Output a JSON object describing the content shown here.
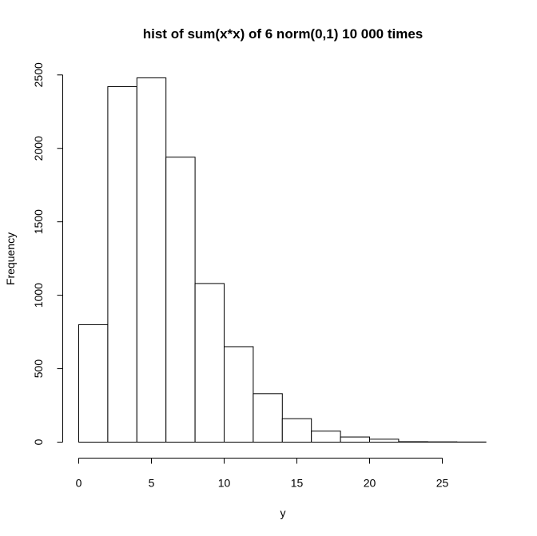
{
  "chart_data": {
    "type": "bar",
    "subtype": "histogram",
    "title": "hist of sum(x*x) of 6 norm(0,1) 10 000 times",
    "xlabel": "y",
    "ylabel": "Frequency",
    "bin_width": 2,
    "bins": [
      {
        "x0": 0,
        "x1": 2,
        "count": 800
      },
      {
        "x0": 2,
        "x1": 4,
        "count": 2420
      },
      {
        "x0": 4,
        "x1": 6,
        "count": 2480
      },
      {
        "x0": 6,
        "x1": 8,
        "count": 1940
      },
      {
        "x0": 8,
        "x1": 10,
        "count": 1080
      },
      {
        "x0": 10,
        "x1": 12,
        "count": 650
      },
      {
        "x0": 12,
        "x1": 14,
        "count": 330
      },
      {
        "x0": 14,
        "x1": 16,
        "count": 160
      },
      {
        "x0": 16,
        "x1": 18,
        "count": 75
      },
      {
        "x0": 18,
        "x1": 20,
        "count": 35
      },
      {
        "x0": 20,
        "x1": 22,
        "count": 20
      },
      {
        "x0": 22,
        "x1": 24,
        "count": 3
      },
      {
        "x0": 24,
        "x1": 26,
        "count": 2
      },
      {
        "x0": 26,
        "x1": 28,
        "count": 1
      }
    ],
    "xlim": [
      0,
      28
    ],
    "ylim": [
      0,
      2500
    ],
    "x_ticks": [
      0,
      5,
      10,
      15,
      20,
      25
    ],
    "y_ticks": [
      0,
      500,
      1000,
      1500,
      2000,
      2500
    ],
    "x_tick_labels": [
      "0",
      "5",
      "10",
      "15",
      "20",
      "25"
    ],
    "y_tick_labels": [
      "0",
      "500",
      "1000",
      "1500",
      "2000",
      "2500"
    ],
    "grid": false,
    "colors": {
      "bar_fill": "#ffffff",
      "bar_stroke": "#000000"
    }
  }
}
